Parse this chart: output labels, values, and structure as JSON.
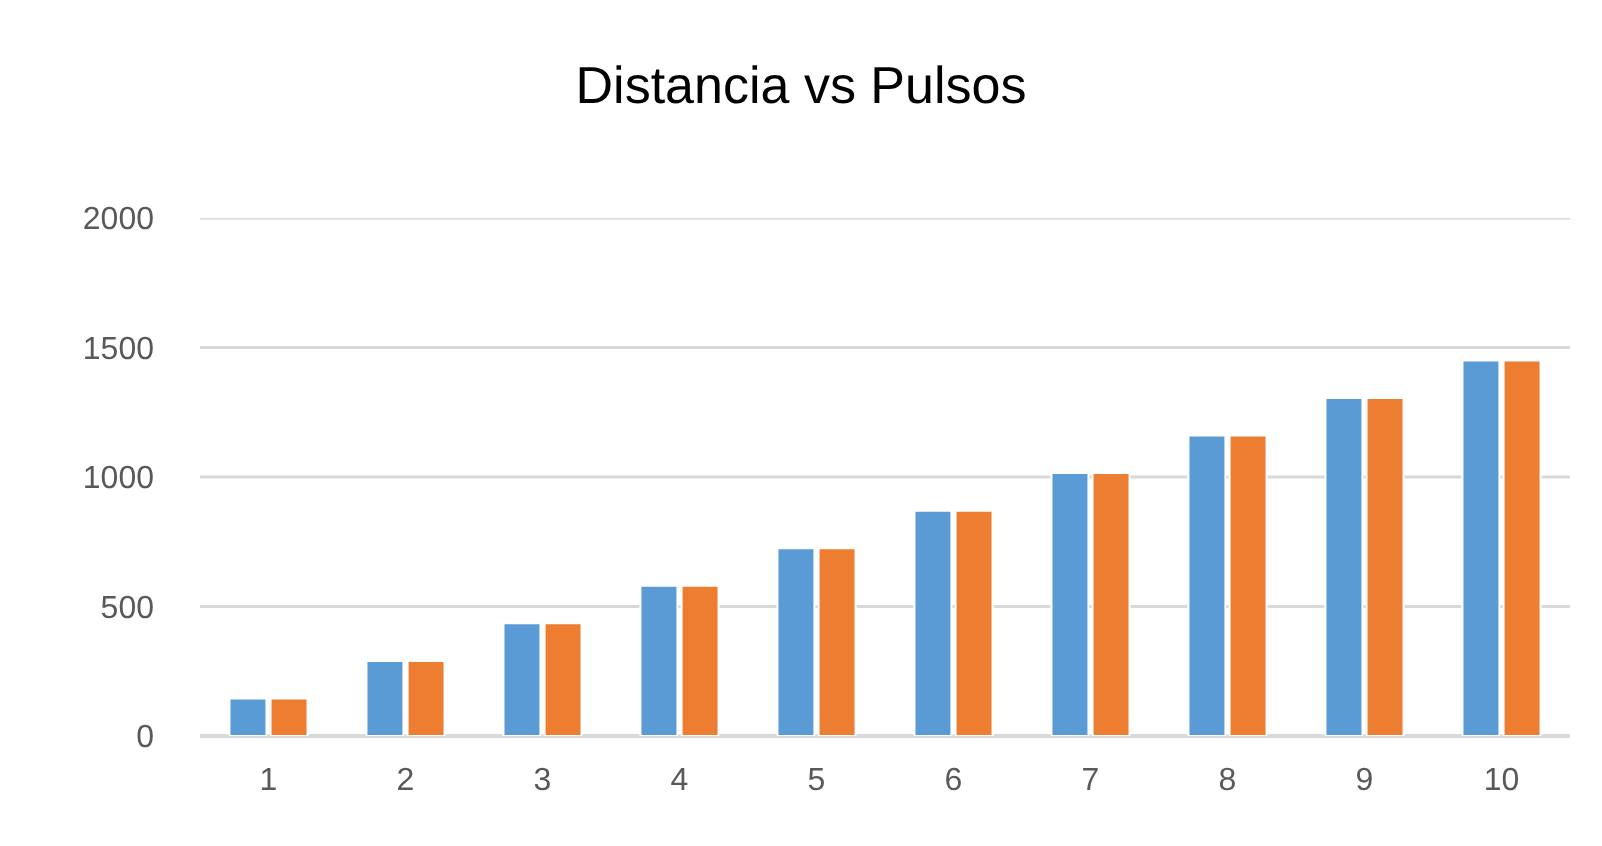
{
  "chart_data": {
    "type": "bar",
    "title": "Distancia vs Pulsos",
    "categories": [
      "1",
      "2",
      "3",
      "4",
      "5",
      "6",
      "7",
      "8",
      "9",
      "10"
    ],
    "series": [
      {
        "color": "#5b9bd5",
        "values": [
          145,
          290,
          435,
          580,
          725,
          870,
          1015,
          1160,
          1305,
          1450
        ]
      },
      {
        "color": "#ed7d31",
        "values": [
          145,
          290,
          435,
          580,
          725,
          870,
          1015,
          1160,
          1305,
          1450
        ]
      }
    ],
    "ylim": [
      0,
      2000
    ],
    "yticks": [
      0,
      500,
      1000,
      1500,
      2000
    ],
    "grid": "y"
  }
}
